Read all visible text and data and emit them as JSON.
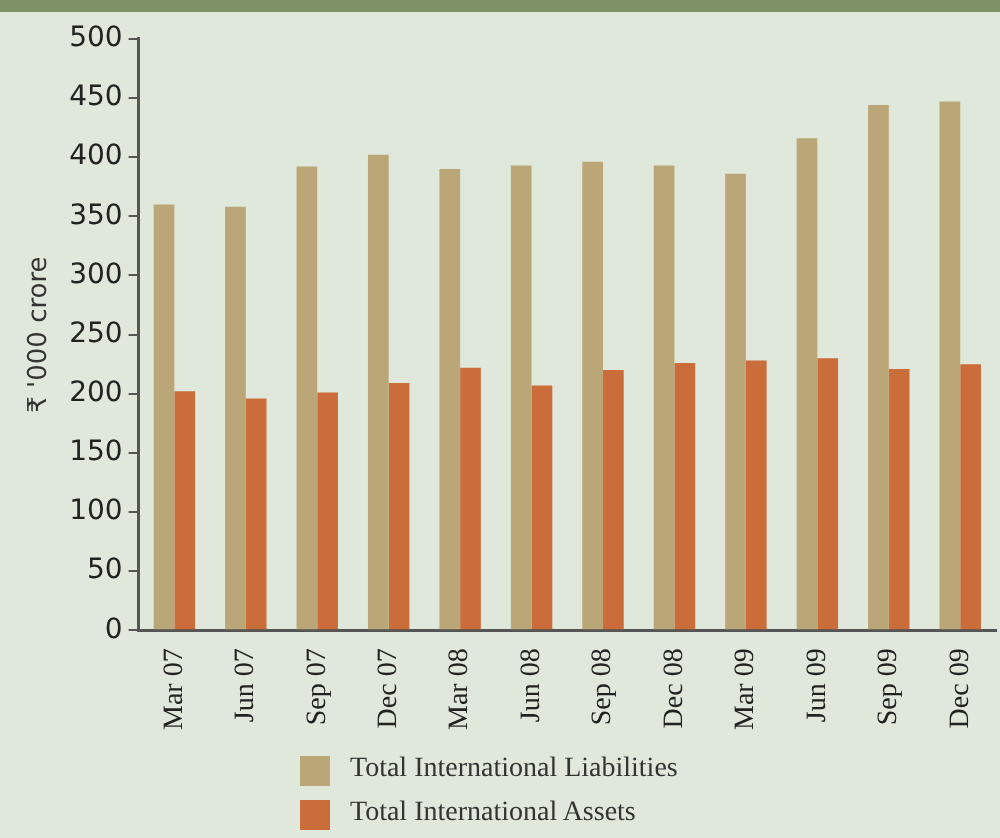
{
  "chart_data": {
    "type": "bar",
    "ylabel": "₹ '000 crore",
    "categories": [
      "Mar 07",
      "Jun 07",
      "Sep 07",
      "Dec 07",
      "Mar 08",
      "Jun 08",
      "Sep 08",
      "Dec 08",
      "Mar 09",
      "Jun 09",
      "Sep 09",
      "Dec 09"
    ],
    "series": [
      {
        "name": "Total International Liabilities",
        "color": "#bba678",
        "values": [
          360,
          358,
          392,
          402,
          390,
          393,
          396,
          393,
          386,
          416,
          444,
          447
        ]
      },
      {
        "name": "Total International Assets",
        "color": "#cb6d3a",
        "values": [
          202,
          196,
          201,
          209,
          222,
          207,
          220,
          226,
          228,
          230,
          221,
          225
        ]
      }
    ],
    "ylim": [
      0,
      500
    ],
    "yticks": [
      0,
      50,
      100,
      150,
      200,
      250,
      300,
      350,
      400,
      450,
      500
    ],
    "grid": false,
    "legend": "bottom"
  }
}
